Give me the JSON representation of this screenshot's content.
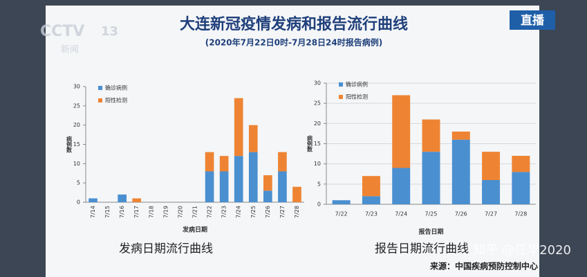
{
  "header": {
    "title": "大连新冠疫情发病和报告流行曲线",
    "subtitle": "(2020年7月22日0时-7月28日24时报告病例)",
    "logo": "CCTV",
    "logo_channel": "13",
    "logo_sub": "新闻",
    "live": "直播",
    "watermark": "知乎 @任华2020",
    "source": "来源：中国疾病预防控制中心"
  },
  "chart_data": [
    {
      "type": "bar",
      "stacked": true,
      "caption": "发病日期流行曲线",
      "x_label": "发病日期",
      "y_label": "病例数",
      "categories": [
        "7/14",
        "7/15",
        "7/16",
        "7/17",
        "7/18",
        "7/19",
        "7/20",
        "7/21",
        "7/22",
        "7/23",
        "7/24",
        "7/25",
        "7/26",
        "7/27",
        "7/28"
      ],
      "series": [
        {
          "name": "确诊病例",
          "color": "#4a8fd0",
          "values": [
            1,
            0,
            2,
            0,
            0,
            0,
            0,
            0,
            8,
            8,
            12,
            13,
            3,
            8,
            0
          ]
        },
        {
          "name": "阳性检测",
          "color": "#ee8433",
          "values": [
            0,
            0,
            0,
            1,
            0,
            0,
            0,
            0,
            5,
            4,
            15,
            7,
            4,
            5,
            4
          ]
        }
      ],
      "ylim": [
        0,
        30
      ],
      "yticks": [
        0,
        5,
        10,
        15,
        20,
        25,
        30
      ],
      "grid": false
    },
    {
      "type": "bar",
      "stacked": true,
      "caption": "报告日期流行曲线",
      "x_label": "报告日期",
      "y_label": "病例数",
      "categories": [
        "7/22",
        "7/23",
        "7/24",
        "7/25",
        "7/26",
        "7/27",
        "7/28"
      ],
      "series": [
        {
          "name": "确诊病例",
          "color": "#4a8fd0",
          "values": [
            1,
            2,
            9,
            13,
            16,
            6,
            8
          ]
        },
        {
          "name": "阳性检测",
          "color": "#ee8433",
          "values": [
            0,
            5,
            18,
            8,
            2,
            7,
            4
          ]
        }
      ],
      "ylim": [
        0,
        30
      ],
      "yticks": [
        0,
        5,
        10,
        15,
        20,
        25,
        30
      ],
      "grid": true
    }
  ]
}
